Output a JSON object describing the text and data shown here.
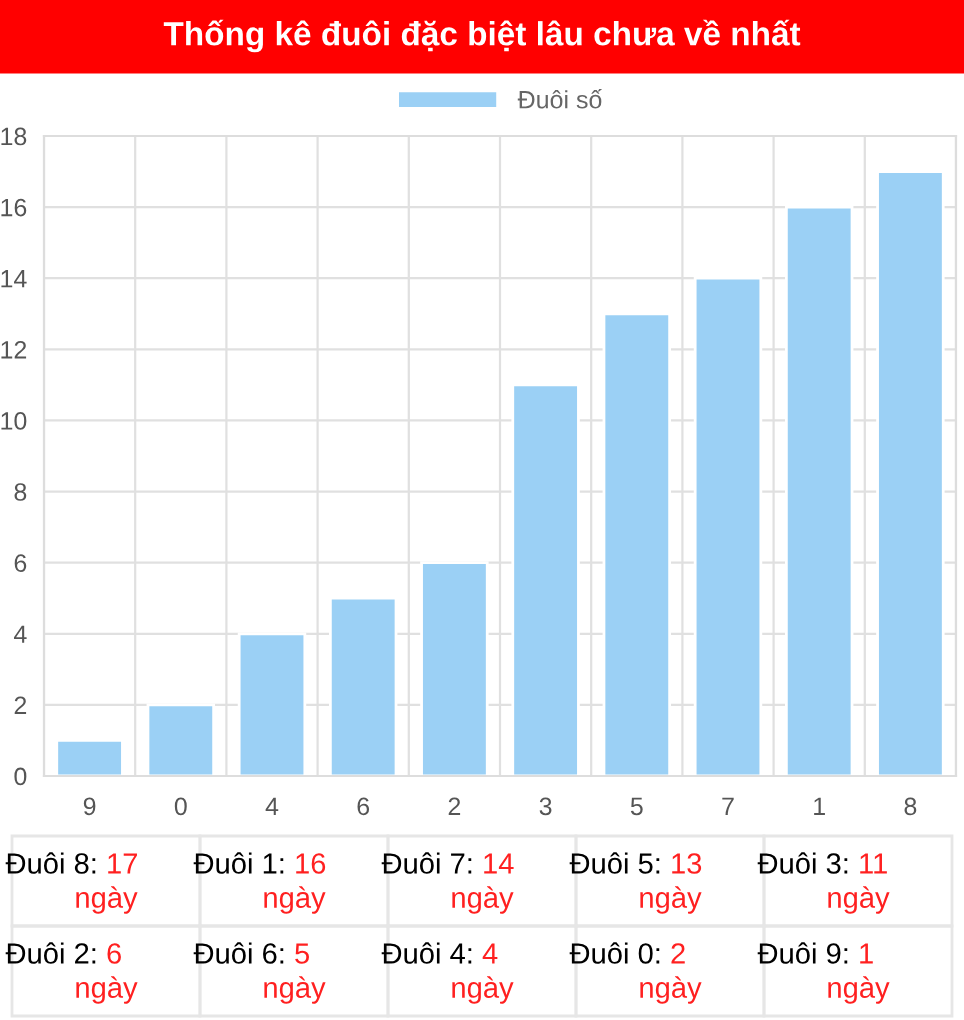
{
  "chart_data": {
    "type": "bar",
    "title": "Thống kê đuôi đặc biệt lâu chưa về nhất",
    "categories": [
      "9",
      "0",
      "4",
      "6",
      "2",
      "3",
      "5",
      "7",
      "1",
      "8"
    ],
    "series": [
      {
        "name": "Đuôi số",
        "color": "#9bd0f5",
        "values": [
          1,
          2,
          4,
          5,
          6,
          11,
          13,
          14,
          16,
          17
        ]
      }
    ],
    "ylim": [
      0,
      18
    ],
    "yticks": [
      0,
      2,
      4,
      6,
      8,
      10,
      12,
      14,
      16,
      18
    ],
    "grid": true,
    "legend": "top",
    "annotations": [
      "Đuôi 8: 17 ngày",
      "Đuôi 1: 16 ngày",
      "Đuôi 7: 14 ngày",
      "Đuôi 5: 13 ngày",
      "Đuôi 3: 11 ngày",
      "Đuôi 2: 6 ngày",
      "Đuôi 6: 5 ngày",
      "Đuôi 4: 4 ngày",
      "Đuôi 0: 2 ngày",
      "Đuôi 9: 1 ngày"
    ]
  }
}
